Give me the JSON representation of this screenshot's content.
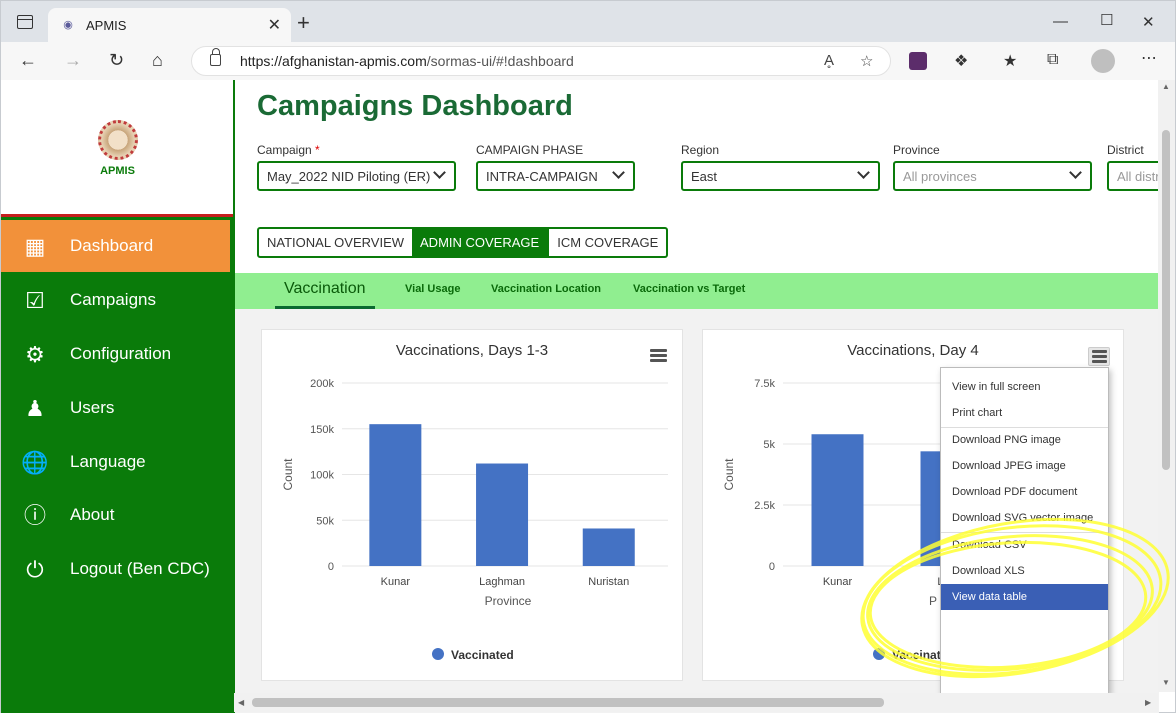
{
  "browser": {
    "tab_title": "APMIS",
    "url_host": "https://afghanistan-apmis.com",
    "url_path": "/sormas-ui/#!dashboard"
  },
  "sidebar": {
    "logo_text": "APMIS",
    "items": [
      {
        "label": "Dashboard",
        "icon": "grid-icon",
        "active": true
      },
      {
        "label": "Campaigns",
        "icon": "clipboard-icon"
      },
      {
        "label": "Configuration",
        "icon": "gear-icon"
      },
      {
        "label": "Users",
        "icon": "users-icon"
      },
      {
        "label": "Language",
        "icon": "globe-icon"
      },
      {
        "label": "About",
        "icon": "info-icon"
      },
      {
        "label": "Logout (Ben CDC)",
        "icon": "power-icon"
      }
    ]
  },
  "page": {
    "title": "Campaigns Dashboard",
    "filters": {
      "campaign": {
        "label": "Campaign",
        "required_mark": "*",
        "value": "May_2022 NID Piloting (ER)"
      },
      "phase": {
        "label": "CAMPAIGN PHASE",
        "value": "INTRA-CAMPAIGN"
      },
      "region": {
        "label": "Region",
        "value": "East"
      },
      "province": {
        "label": "Province",
        "placeholder": "All provinces"
      },
      "district": {
        "label": "District",
        "placeholder": "All distr"
      }
    },
    "views": [
      "NATIONAL OVERVIEW",
      "ADMIN COVERAGE",
      "ICM COVERAGE"
    ],
    "active_view": "ADMIN COVERAGE",
    "subtabs": [
      "Vaccination",
      "Vial Usage",
      "Vaccination Location",
      "Vaccination vs Target"
    ]
  },
  "chart_data": [
    {
      "type": "bar",
      "title": "Vaccinations, Days 1-3",
      "categories": [
        "Kunar",
        "Laghman",
        "Nuristan"
      ],
      "series": [
        {
          "name": "Vaccinated",
          "values": [
            155000,
            112000,
            41000
          ]
        }
      ],
      "xlabel": "Province",
      "ylabel": "Count",
      "ylim": [
        0,
        200000
      ],
      "yticks": [
        "0",
        "50k",
        "100k",
        "150k",
        "200k"
      ],
      "color": "#4472c4",
      "legend": "bottom-center"
    },
    {
      "type": "bar",
      "title": "Vaccinations, Day 4",
      "categories": [
        "Kunar",
        "Lag"
      ],
      "series": [
        {
          "name": "Vaccinated",
          "values": [
            5400,
            4700
          ]
        }
      ],
      "xlabel": "P",
      "ylabel": "Count",
      "ylim": [
        0,
        7500
      ],
      "yticks": [
        "0",
        "2.5k",
        "5k",
        "7.5k"
      ],
      "color": "#4472c4",
      "legend": "bottom-center"
    }
  ],
  "chart_menu": {
    "items": [
      "View in full screen",
      "Print chart",
      "Download PNG image",
      "Download JPEG image",
      "Download PDF document",
      "Download SVG vector image",
      "Download CSV",
      "Download XLS",
      "View data table"
    ],
    "highlighted": "View data table"
  },
  "colors": {
    "brand_green": "#0a7b0a",
    "active_orange": "#f2913a",
    "subnav_green": "#90ee90",
    "bar_blue": "#4472c4"
  }
}
